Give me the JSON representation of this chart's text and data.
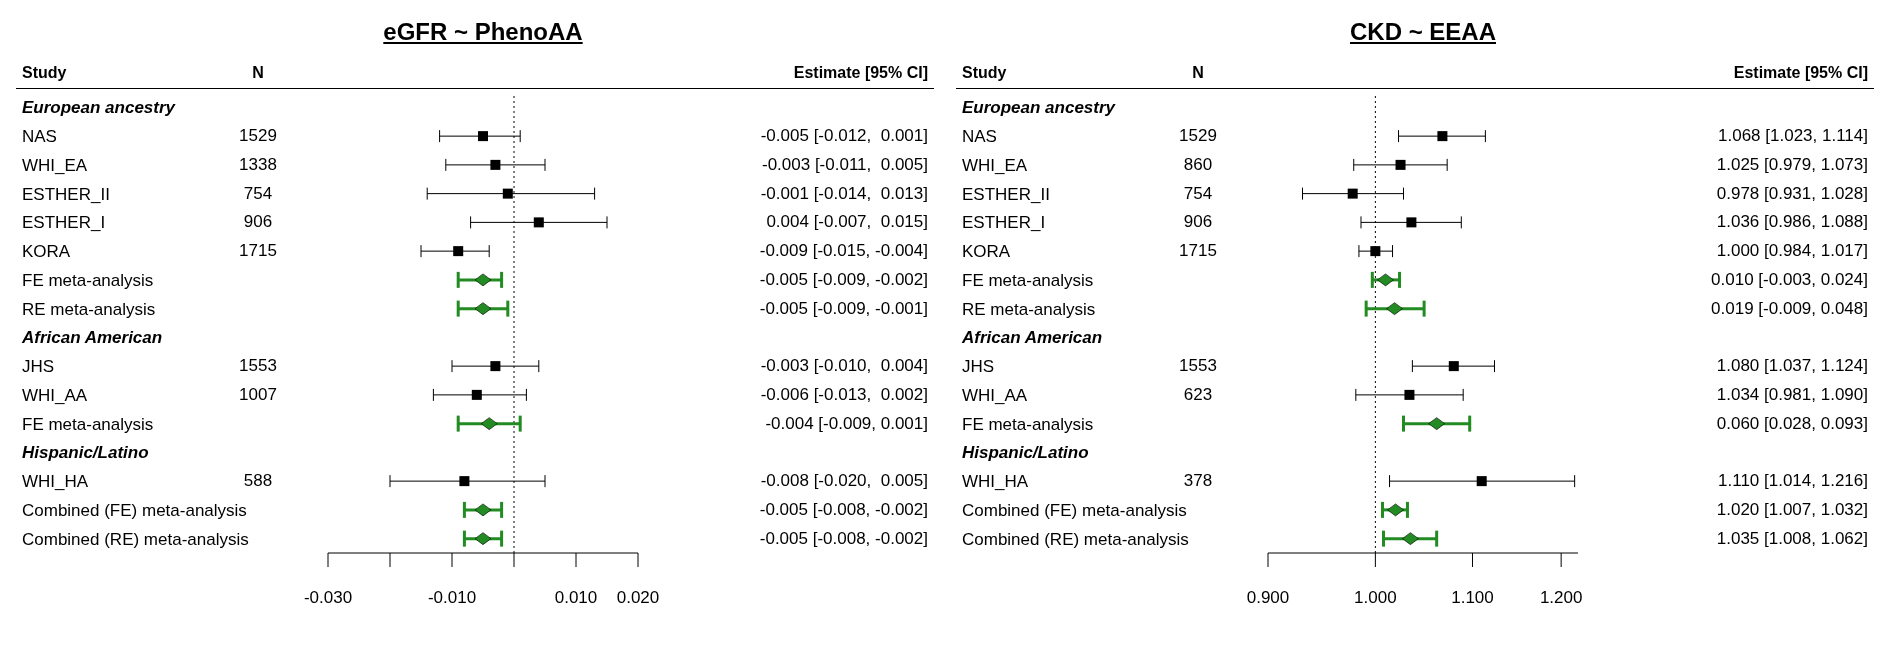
{
  "chart_data": [
    {
      "type": "scatter",
      "title": "eGFR ~ PhenoAA",
      "orientation": "horizontal",
      "categories": [
        "European ancestry",
        "NAS",
        "WHI_EA",
        "ESTHER_II",
        "ESTHER_I",
        "KORA",
        "FE meta-analysis",
        "RE meta-analysis",
        "African American",
        "JHS",
        "WHI_AA",
        "FE meta-analysis",
        "Hispanic/Latino",
        "WHI_HA",
        "Combined (FE) meta-analysis",
        "Combined (RE) meta-analysis"
      ],
      "y2_categories": [
        null,
        "1529",
        "1338",
        "754",
        "906",
        "1715",
        null,
        null,
        null,
        "1553",
        "1007",
        null,
        null,
        "588",
        null,
        null
      ],
      "annotations": [
        "Study",
        "N",
        "Estimate [95% CI]"
      ],
      "value_labels": [
        null,
        "-0.005 [-0.012,  0.001]",
        "-0.003 [-0.011,  0.005]",
        "-0.001 [-0.014,  0.013]",
        "0.004 [-0.007,  0.015]",
        "-0.009 [-0.015, -0.004]",
        "-0.005 [-0.009, -0.002]",
        "-0.005 [-0.009, -0.001]",
        null,
        "-0.003 [-0.010,  0.004]",
        "-0.006 [-0.013,  0.002]",
        "-0.004 [-0.009, 0.001]",
        null,
        "-0.008 [-0.020,  0.005]",
        "-0.005 [-0.008, -0.002]",
        "-0.005 [-0.008, -0.002]"
      ],
      "series": [
        {
          "marker": "square",
          "color": "#000000",
          "values": [
            null,
            -0.005,
            -0.003,
            -0.001,
            0.004,
            -0.009,
            null,
            null,
            null,
            -0.003,
            -0.006,
            null,
            null,
            -0.008,
            null,
            null
          ],
          "errors": [
            null,
            [
              -0.012,
              0.001
            ],
            [
              -0.011,
              0.005
            ],
            [
              -0.014,
              0.013
            ],
            [
              -0.007,
              0.015
            ],
            [
              -0.015,
              -0.004
            ],
            null,
            null,
            null,
            [
              -0.01,
              0.004
            ],
            [
              -0.013,
              0.002
            ],
            null,
            null,
            [
              -0.02,
              0.005
            ],
            null,
            null
          ]
        },
        {
          "marker": "diamond",
          "color": "#228b22",
          "values": [
            null,
            null,
            null,
            null,
            null,
            null,
            -0.005,
            -0.005,
            null,
            null,
            null,
            -0.004,
            null,
            null,
            -0.005,
            -0.005
          ],
          "errors": [
            null,
            null,
            null,
            null,
            null,
            null,
            [
              -0.009,
              -0.002
            ],
            [
              -0.009,
              -0.001
            ],
            null,
            null,
            null,
            [
              -0.009,
              0.001
            ],
            null,
            null,
            [
              -0.008,
              -0.002
            ],
            [
              -0.008,
              -0.002
            ]
          ]
        }
      ],
      "xlim": [
        -0.03,
        0.02
      ],
      "xticks": [
        {
          "value": -0.03,
          "label": "-0.030"
        },
        {
          "value": -0.02,
          "label": null
        },
        {
          "value": -0.01,
          "label": "-0.010"
        },
        {
          "value": 0,
          "label": null
        },
        {
          "value": 0.01,
          "label": "0.010"
        },
        {
          "value": 0.02,
          "label": "0.020"
        }
      ],
      "ref_lines": [
        {
          "axis": "x",
          "value": 0,
          "line_style": "dotted"
        }
      ]
    },
    {
      "type": "scatter",
      "title": "CKD ~ EEAA",
      "orientation": "horizontal",
      "categories": [
        "European ancestry",
        "NAS",
        "WHI_EA",
        "ESTHER_II",
        "ESTHER_I",
        "KORA",
        "FE meta-analysis",
        "RE meta-analysis",
        "African American",
        "JHS",
        "WHI_AA",
        "FE meta-analysis",
        "Hispanic/Latino",
        "WHI_HA",
        "Combined (FE) meta-analysis",
        "Combined (RE) meta-analysis"
      ],
      "y2_categories": [
        null,
        "1529",
        "860",
        "754",
        "906",
        "1715",
        null,
        null,
        null,
        "1553",
        "623",
        null,
        null,
        "378",
        null,
        null
      ],
      "annotations": [
        "Study",
        "N",
        "Estimate [95% CI]"
      ],
      "value_labels": [
        null,
        "1.068 [1.023, 1.114]",
        "1.025 [0.979, 1.073]",
        "0.978 [0.931, 1.028]",
        "1.036 [0.986, 1.088]",
        "1.000 [0.984, 1.017]",
        "0.010 [-0.003, 0.024]",
        "0.019 [-0.009, 0.048]",
        null,
        "1.080 [1.037, 1.124]",
        "1.034 [0.981, 1.090]",
        "0.060 [0.028, 0.093]",
        null,
        "1.110 [1.014, 1.216]",
        "1.020 [1.007, 1.032]",
        "1.035 [1.008, 1.062]"
      ],
      "series": [
        {
          "marker": "square",
          "color": "#000000",
          "values": [
            null,
            1.068,
            1.025,
            0.978,
            1.036,
            1.0,
            null,
            null,
            null,
            1.08,
            1.034,
            null,
            null,
            1.11,
            null,
            null
          ],
          "errors": [
            null,
            [
              1.023,
              1.114
            ],
            [
              0.979,
              1.073
            ],
            [
              0.931,
              1.028
            ],
            [
              0.986,
              1.088
            ],
            [
              0.984,
              1.017
            ],
            null,
            null,
            null,
            [
              1.037,
              1.124
            ],
            [
              0.981,
              1.09
            ],
            null,
            null,
            [
              1.014,
              1.216
            ],
            null,
            null
          ]
        },
        {
          "marker": "diamond",
          "color": "#228b22",
          "values": [
            null,
            null,
            null,
            null,
            null,
            null,
            1.01,
            1.019,
            null,
            null,
            null,
            1.062,
            null,
            null,
            1.02,
            1.035
          ],
          "errors": [
            null,
            null,
            null,
            null,
            null,
            null,
            [
              0.997,
              1.024
            ],
            [
              0.991,
              1.049
            ],
            null,
            null,
            null,
            [
              1.028,
              1.097
            ],
            null,
            null,
            [
              1.007,
              1.032
            ],
            [
              1.008,
              1.062
            ]
          ]
        }
      ],
      "log": "x",
      "xlim": [
        0.9,
        1.22
      ],
      "xticks": [
        {
          "value": 0.9,
          "label": "0.900"
        },
        {
          "value": 1.0,
          "label": "1.000"
        },
        {
          "value": 1.1,
          "label": "1.100"
        },
        {
          "value": 1.2,
          "label": "1.200"
        }
      ],
      "ref_lines": [
        {
          "axis": "x",
          "value": 1.0,
          "line_style": "dotted"
        }
      ]
    }
  ]
}
